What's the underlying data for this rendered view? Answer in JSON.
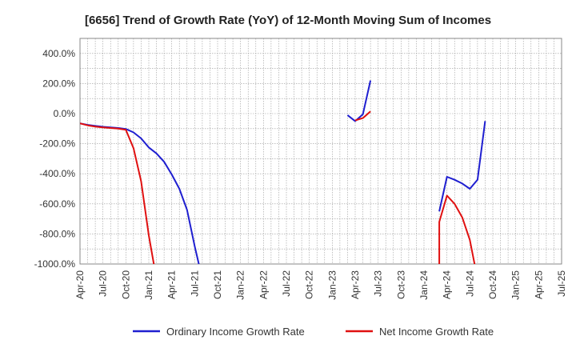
{
  "chart_data": {
    "type": "line",
    "title": "[6656]  Trend of Growth Rate (YoY) of 12-Month Moving Sum of Incomes",
    "xlabel": "",
    "ylabel": "",
    "ylim": [
      -1000,
      500
    ],
    "y_ticks": [
      {
        "value": 400,
        "label": "400.0%"
      },
      {
        "value": 200,
        "label": "200.0%"
      },
      {
        "value": 0,
        "label": "0.0%"
      },
      {
        "value": -200,
        "label": "-200.0%"
      },
      {
        "value": -400,
        "label": "-400.0%"
      },
      {
        "value": -600,
        "label": "-600.0%"
      },
      {
        "value": -800,
        "label": "-800.0%"
      },
      {
        "value": -1000,
        "label": "-1000.0%"
      }
    ],
    "x_range": [
      "2020-04",
      "2025-07"
    ],
    "x_ticks": [
      "Apr-20",
      "Jul-20",
      "Oct-20",
      "Jan-21",
      "Apr-21",
      "Jul-21",
      "Oct-21",
      "Jan-22",
      "Apr-22",
      "Jul-22",
      "Oct-22",
      "Jan-23",
      "Apr-23",
      "Jul-23",
      "Oct-23",
      "Jan-24",
      "Apr-24",
      "Jul-24",
      "Oct-24",
      "Jan-25",
      "Apr-25",
      "Jul-25"
    ],
    "grid": true,
    "legend_placement": "bottom",
    "series": [
      {
        "name": "Ordinary Income Growth Rate",
        "color": "#1f1fd0",
        "points": [
          [
            "2020-04",
            -65
          ],
          [
            "2020-05",
            -75
          ],
          [
            "2020-06",
            -82
          ],
          [
            "2020-07",
            -88
          ],
          [
            "2020-08",
            -92
          ],
          [
            "2020-09",
            -96
          ],
          [
            "2020-10",
            -102
          ],
          [
            "2020-11",
            -125
          ],
          [
            "2020-12",
            -165
          ],
          [
            "2021-01",
            -225
          ],
          [
            "2021-02",
            -265
          ],
          [
            "2021-03",
            -320
          ],
          [
            "2021-04",
            -405
          ],
          [
            "2021-05",
            -500
          ],
          [
            "2021-06",
            -640
          ],
          [
            "2021-07",
            -880
          ],
          [
            "2021-08",
            -1100
          ]
        ],
        "segments": [
          [
            [
              "2023-03",
              -10
            ],
            [
              "2023-04",
              -50
            ],
            [
              "2023-05",
              -5
            ],
            [
              "2023-06",
              220
            ]
          ],
          [
            [
              "2024-03",
              -650
            ],
            [
              "2024-04",
              -420
            ],
            [
              "2024-05",
              -440
            ],
            [
              "2024-06",
              -465
            ],
            [
              "2024-07",
              -500
            ],
            [
              "2024-08",
              -440
            ],
            [
              "2024-09",
              -50
            ]
          ]
        ]
      },
      {
        "name": "Net Income Growth Rate",
        "color": "#e01010",
        "points": [
          [
            "2020-04",
            -65
          ],
          [
            "2020-05",
            -78
          ],
          [
            "2020-06",
            -86
          ],
          [
            "2020-07",
            -92
          ],
          [
            "2020-08",
            -96
          ],
          [
            "2020-09",
            -100
          ],
          [
            "2020-10",
            -108
          ],
          [
            "2020-11",
            -230
          ],
          [
            "2020-12",
            -450
          ],
          [
            "2021-01",
            -810
          ],
          [
            "2021-02",
            -1100
          ]
        ],
        "segments": [
          [
            [
              "2023-04",
              -45
            ],
            [
              "2023-05",
              -30
            ],
            [
              "2023-06",
              15
            ]
          ],
          [
            [
              "2024-03",
              -1100
            ],
            [
              "2024-03",
              -720
            ],
            [
              "2024-04",
              -545
            ],
            [
              "2024-05",
              -600
            ],
            [
              "2024-06",
              -690
            ],
            [
              "2024-07",
              -840
            ],
            [
              "2024-08",
              -1100
            ]
          ]
        ]
      }
    ]
  }
}
